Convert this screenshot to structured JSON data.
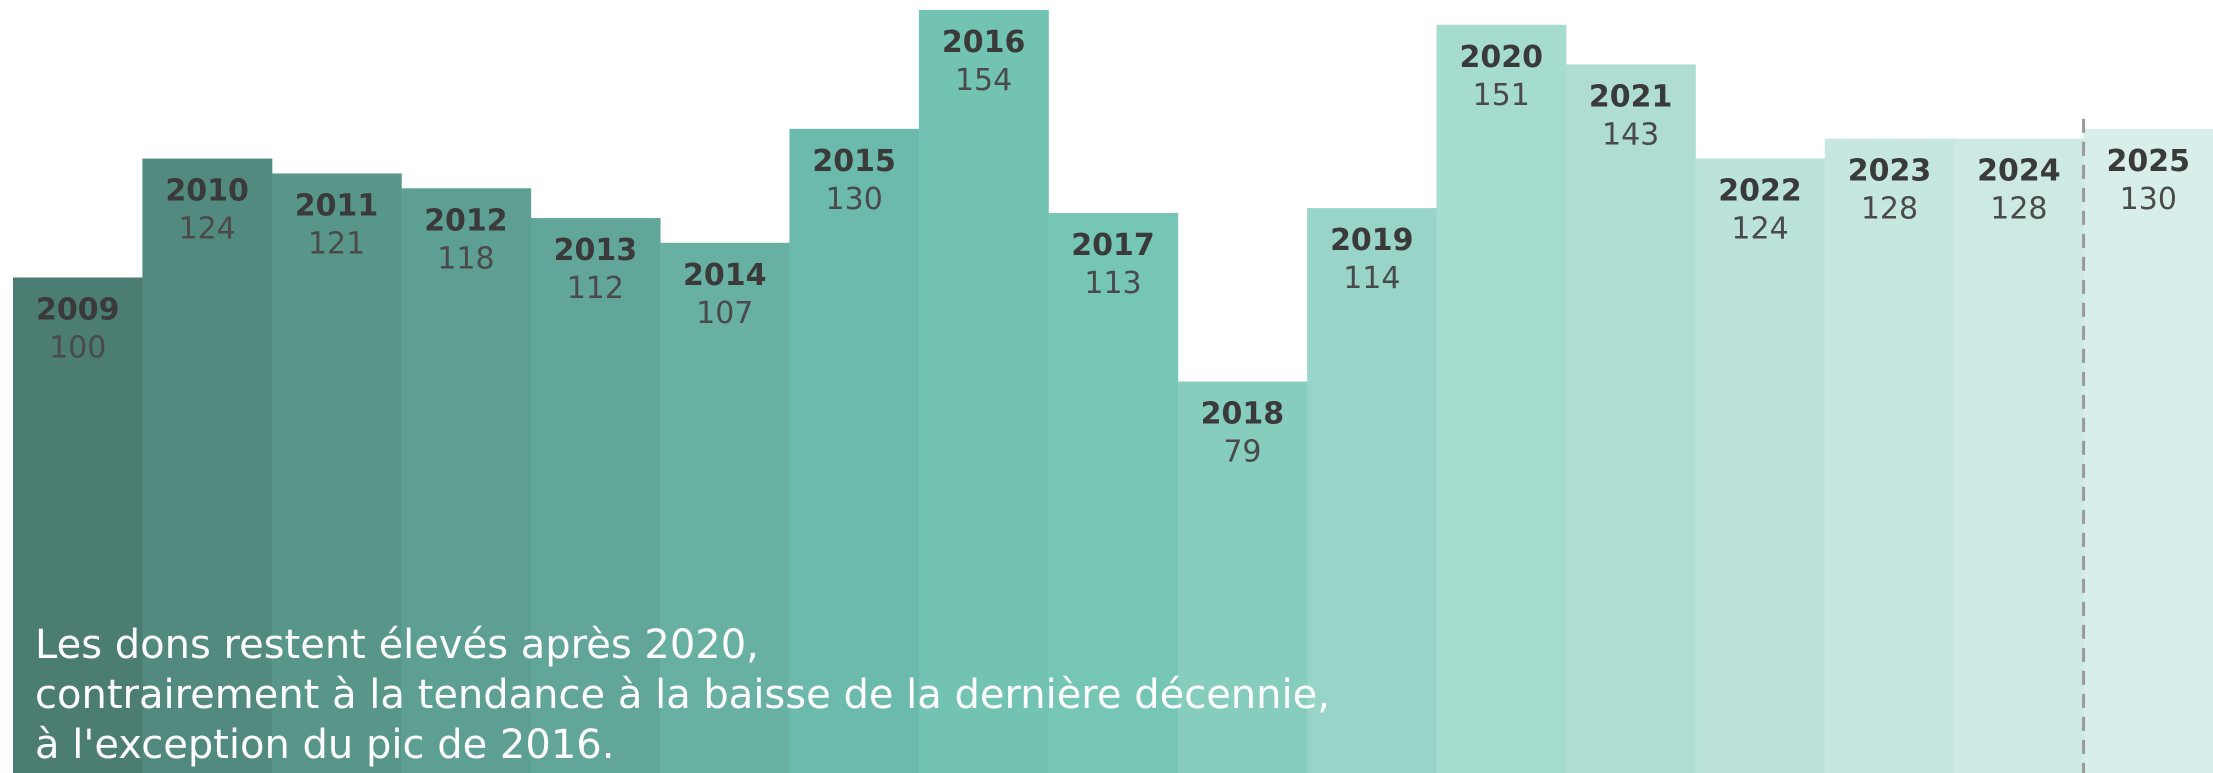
{
  "chart_data": {
    "type": "bar",
    "categories": [
      "2009",
      "2010",
      "2011",
      "2012",
      "2013",
      "2014",
      "2015",
      "2016",
      "2017",
      "2018",
      "2019",
      "2020",
      "2021",
      "2022",
      "2023",
      "2024",
      "2025"
    ],
    "values": [
      100,
      124,
      121,
      118,
      112,
      107,
      130,
      154,
      113,
      79,
      114,
      151,
      143,
      124,
      128,
      128,
      130
    ],
    "colors": [
      "#4b7d73",
      "#528a7f",
      "#58968a",
      "#5d9f92",
      "#62a699",
      "#67b0a2",
      "#6cbaab",
      "#73c3b2",
      "#75c6b5",
      "#86cdbe",
      "#98d4c8",
      "#a6dbd0",
      "#afddd3",
      "#bce3db",
      "#c5e7e0",
      "#cde9e3",
      "#d8eeea"
    ],
    "ylim": [
      0,
      156
    ],
    "annotation": [
      "Les dons restent élevés après 2020,",
      "contrairement à la tendance à la baisse de la dernière décennie,",
      "à l'exception du pic de 2016."
    ]
  }
}
